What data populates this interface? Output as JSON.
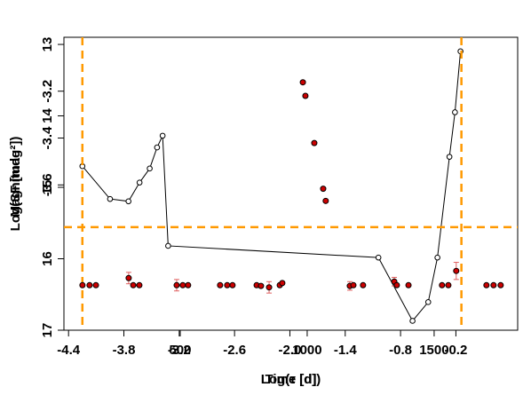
{
  "chart_data": [
    {
      "type": "line",
      "x_label": "Log(τ [d])",
      "y_label": "Log(SF [mag²])",
      "color": "#000000",
      "x": [
        -4.25,
        -3.95,
        -3.75,
        -3.63,
        -3.52,
        -3.44,
        -3.38,
        -3.32,
        -1.04,
        -0.67,
        -0.5,
        -0.4,
        -0.27,
        -0.21,
        -0.15
      ],
      "values": [
        -3.52,
        -3.66,
        -3.67,
        -3.59,
        -3.53,
        -3.44,
        -3.39,
        -3.86,
        -3.91,
        -4.18,
        -4.1,
        -3.91,
        -3.48,
        -3.29,
        -3.03
      ],
      "xlim": [
        -4.45,
        0.47
      ],
      "ylim": [
        -4.22,
        -2.97
      ],
      "xticks": [
        -4.4,
        -3.8,
        -3.2,
        -2.6,
        {
          "value": -2,
          "label": "-2.0"
        },
        -1.4,
        -0.8,
        -0.2
      ],
      "yticks": [
        -3.2,
        -3.4,
        -3.6
      ],
      "hlines": [
        -3.78
      ],
      "vlines": [
        -4.25,
        -0.14
      ],
      "line_color": "#ff9900"
    },
    {
      "type": "scatter",
      "x_label": "Time [d]",
      "y_label": "Magnitude",
      "color": "#cc0000",
      "error_color": "#e06060",
      "x": [
        115,
        143,
        168,
        297,
        315,
        339,
        486,
        510,
        531,
        657,
        685,
        706,
        801,
        818,
        850,
        892,
        902,
        983,
        993,
        1028,
        1063,
        1073,
        1168,
        1182,
        1220,
        1343,
        1353,
        1399,
        1531,
        1556,
        1587,
        1706,
        1734,
        1762
      ],
      "values": [
        16.37,
        16.37,
        16.37,
        16.27,
        16.37,
        16.37,
        16.37,
        16.37,
        16.37,
        16.37,
        16.37,
        16.37,
        16.37,
        16.38,
        16.4,
        16.37,
        16.34,
        13.53,
        13.72,
        14.38,
        15.02,
        15.19,
        16.38,
        16.37,
        16.37,
        16.32,
        16.37,
        16.37,
        16.37,
        16.37,
        16.17,
        16.37,
        16.37,
        16.37
      ],
      "errors": [
        0.02,
        0.02,
        0.02,
        0.08,
        0.02,
        0.02,
        0.08,
        0.02,
        0.02,
        0.02,
        0.02,
        0.02,
        0.02,
        0.02,
        0.08,
        0.02,
        0.02,
        0.02,
        0.02,
        0.02,
        0.02,
        0.02,
        0.06,
        0.02,
        0.02,
        0.06,
        0.02,
        0.02,
        0.02,
        0.02,
        0.12,
        0.02,
        0.02,
        0.02
      ],
      "xlim": [
        42,
        1829
      ],
      "ylim": [
        17,
        12.9
      ],
      "reverse_y": true,
      "xticks": [
        500,
        1000,
        1500
      ],
      "yticks": [
        13,
        14,
        15,
        16,
        17
      ]
    }
  ]
}
